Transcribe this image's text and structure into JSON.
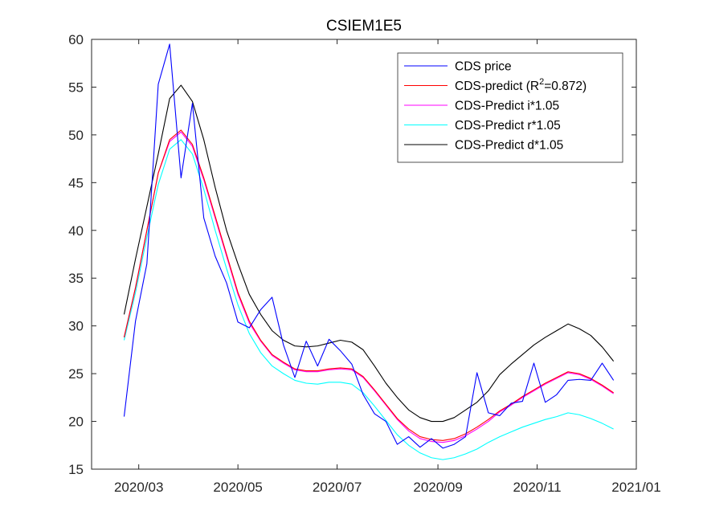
{
  "chart_data": {
    "type": "line",
    "title": "CSIEM1E5",
    "xlabel": "",
    "ylabel": "",
    "xlim": [
      "2020-02-01",
      "2021-01-01"
    ],
    "ylim": [
      15,
      60
    ],
    "x_ticks": [
      "2020/03",
      "2020/05",
      "2020/07",
      "2020/09",
      "2020/11",
      "2021/01"
    ],
    "x_tick_dates": [
      "2020-03-01",
      "2020-05-01",
      "2020-07-01",
      "2020-09-01",
      "2020-11-01",
      "2021-01-01"
    ],
    "y_ticks": [
      15,
      20,
      25,
      30,
      35,
      40,
      45,
      50,
      55,
      60
    ],
    "grid": false,
    "legend_position": "top-right",
    "x": [
      "2020-02-21",
      "2020-02-28",
      "2020-03-06",
      "2020-03-13",
      "2020-03-20",
      "2020-03-27",
      "2020-04-03",
      "2020-04-10",
      "2020-04-17",
      "2020-04-24",
      "2020-05-01",
      "2020-05-08",
      "2020-05-15",
      "2020-05-22",
      "2020-05-29",
      "2020-06-05",
      "2020-06-12",
      "2020-06-19",
      "2020-06-26",
      "2020-07-03",
      "2020-07-10",
      "2020-07-17",
      "2020-07-24",
      "2020-07-31",
      "2020-08-07",
      "2020-08-14",
      "2020-08-21",
      "2020-08-28",
      "2020-09-04",
      "2020-09-11",
      "2020-09-18",
      "2020-09-25",
      "2020-10-02",
      "2020-10-09",
      "2020-10-16",
      "2020-10-23",
      "2020-10-30",
      "2020-11-06",
      "2020-11-13",
      "2020-11-20",
      "2020-11-27",
      "2020-12-04",
      "2020-12-11",
      "2020-12-18"
    ],
    "series": [
      {
        "name": "CDS price",
        "color": "#0000ff",
        "values": [
          20.5,
          30.5,
          36.5,
          55.3,
          59.5,
          45.5,
          53.3,
          41.3,
          37.3,
          34.5,
          30.4,
          29.8,
          31.7,
          33.0,
          28.0,
          24.6,
          28.4,
          25.8,
          28.6,
          27.4,
          26.0,
          22.8,
          20.8,
          20.0,
          17.6,
          18.4,
          17.3,
          18.2,
          17.2,
          17.6,
          18.4,
          25.1,
          20.9,
          20.6,
          21.9,
          22.1,
          26.1,
          22.0,
          22.8,
          24.3,
          24.4,
          24.3,
          26.1,
          24.3
        ]
      },
      {
        "name": "CDS-predict (R2=0.872)",
        "color": "#ff0000",
        "values": [
          28.8,
          34.0,
          40.0,
          46.0,
          49.5,
          50.5,
          49.0,
          45.5,
          41.5,
          37.5,
          33.5,
          30.5,
          28.5,
          27.0,
          26.2,
          25.5,
          25.3,
          25.3,
          25.5,
          25.6,
          25.5,
          24.7,
          23.3,
          21.8,
          20.3,
          19.2,
          18.4,
          18.1,
          18.0,
          18.2,
          18.7,
          19.4,
          20.2,
          21.1,
          21.8,
          22.6,
          23.3,
          24.0,
          24.6,
          25.2,
          25.0,
          24.5,
          23.8,
          23.0
        ]
      },
      {
        "name": "CDS-Predict i*1.05",
        "color": "#ff00ff",
        "values": [
          28.8,
          34.0,
          40.0,
          46.0,
          49.3,
          50.3,
          48.8,
          45.3,
          41.3,
          37.3,
          33.3,
          30.3,
          28.4,
          26.9,
          26.1,
          25.4,
          25.2,
          25.2,
          25.4,
          25.5,
          25.4,
          24.6,
          23.2,
          21.7,
          20.2,
          19.0,
          18.2,
          17.9,
          17.8,
          18.0,
          18.5,
          19.2,
          20.0,
          21.0,
          21.7,
          22.5,
          23.2,
          23.9,
          24.5,
          25.1,
          24.9,
          24.4,
          23.7,
          22.9
        ]
      },
      {
        "name": "CDS-Predict r*1.05",
        "color": "#00ffff",
        "values": [
          28.5,
          33.5,
          39.3,
          44.8,
          48.5,
          49.5,
          48.0,
          44.3,
          40.0,
          36.0,
          32.2,
          29.2,
          27.2,
          25.8,
          25.0,
          24.3,
          24.0,
          23.9,
          24.1,
          24.1,
          23.9,
          23.0,
          21.6,
          20.1,
          18.6,
          17.5,
          16.7,
          16.2,
          16.0,
          16.2,
          16.6,
          17.1,
          17.8,
          18.4,
          18.9,
          19.4,
          19.8,
          20.2,
          20.5,
          20.9,
          20.7,
          20.3,
          19.8,
          19.2
        ]
      },
      {
        "name": "CDS-Predict d*1.05",
        "color": "#000000",
        "values": [
          31.2,
          37.0,
          42.5,
          48.0,
          53.8,
          55.2,
          53.5,
          49.5,
          44.5,
          40.0,
          36.5,
          33.3,
          31.2,
          29.5,
          28.5,
          27.9,
          27.8,
          27.9,
          28.2,
          28.5,
          28.3,
          27.5,
          25.8,
          24.0,
          22.5,
          21.2,
          20.4,
          20.0,
          20.0,
          20.4,
          21.2,
          22.0,
          23.2,
          24.9,
          26.0,
          27.0,
          28.0,
          28.8,
          29.5,
          30.2,
          29.7,
          29.0,
          27.8,
          26.3
        ]
      }
    ]
  },
  "legend": {
    "items": [
      {
        "label": "CDS price",
        "color": "#0000ff"
      },
      {
        "label_main": "CDS-predict (R",
        "label_sup": "2",
        "label_tail": "=0.872)",
        "color": "#ff0000"
      },
      {
        "label": "CDS-Predict i*1.05",
        "color": "#ff00ff"
      },
      {
        "label": "CDS-Predict r*1.05",
        "color": "#00ffff"
      },
      {
        "label": "CDS-Predict d*1.05",
        "color": "#000000"
      }
    ]
  }
}
